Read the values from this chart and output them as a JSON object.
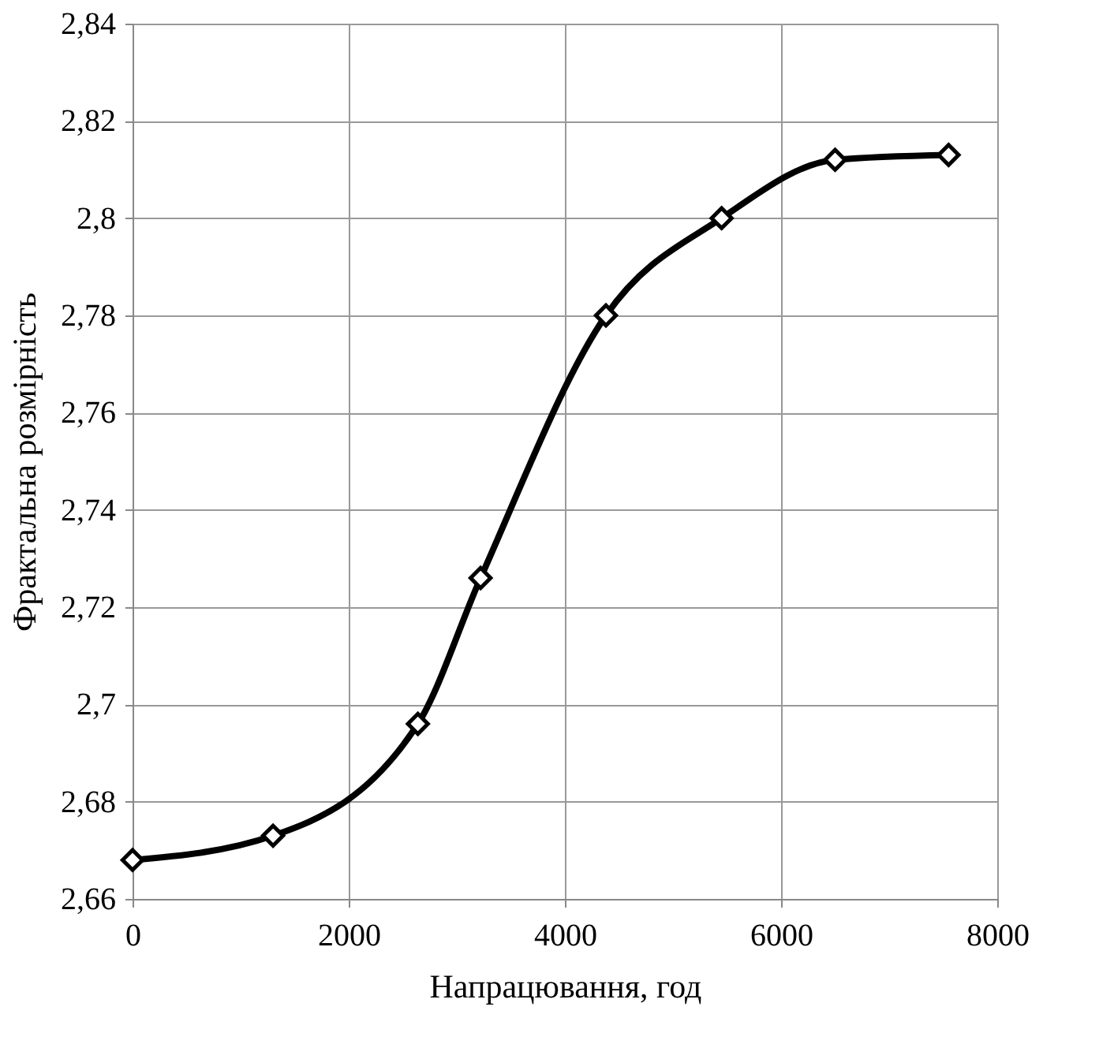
{
  "chart_data": {
    "type": "line",
    "xlabel": "Напрацювання, год",
    "ylabel": "Фрактальна розмірність",
    "x": [
      0,
      1300,
      2640,
      3220,
      4380,
      5450,
      6500,
      7550
    ],
    "series": [
      {
        "color": "#000000",
        "values": [
          2.668,
          2.673,
          2.696,
          2.726,
          2.78,
          2.8,
          2.812,
          2.813
        ]
      }
    ],
    "xlim": [
      0,
      8000
    ],
    "xticks": [
      0,
      2000,
      4000,
      6000,
      8000
    ],
    "ylim": [
      2.66,
      2.84
    ],
    "yticks": [
      {
        "value": 2.66,
        "label": "2,66"
      },
      {
        "value": 2.68,
        "label": "2,68"
      },
      {
        "value": 2.7,
        "label": "2,7"
      },
      {
        "value": 2.72,
        "label": "2,72"
      },
      {
        "value": 2.74,
        "label": "2,74"
      },
      {
        "value": 2.76,
        "label": "2,76"
      },
      {
        "value": 2.78,
        "label": "2,78"
      },
      {
        "value": 2.8,
        "label": "2,8"
      },
      {
        "value": 2.82,
        "label": "2,82"
      },
      {
        "value": 2.84,
        "label": "2,84"
      }
    ],
    "grid": true,
    "marker": "diamond",
    "line_style": "solid"
  }
}
